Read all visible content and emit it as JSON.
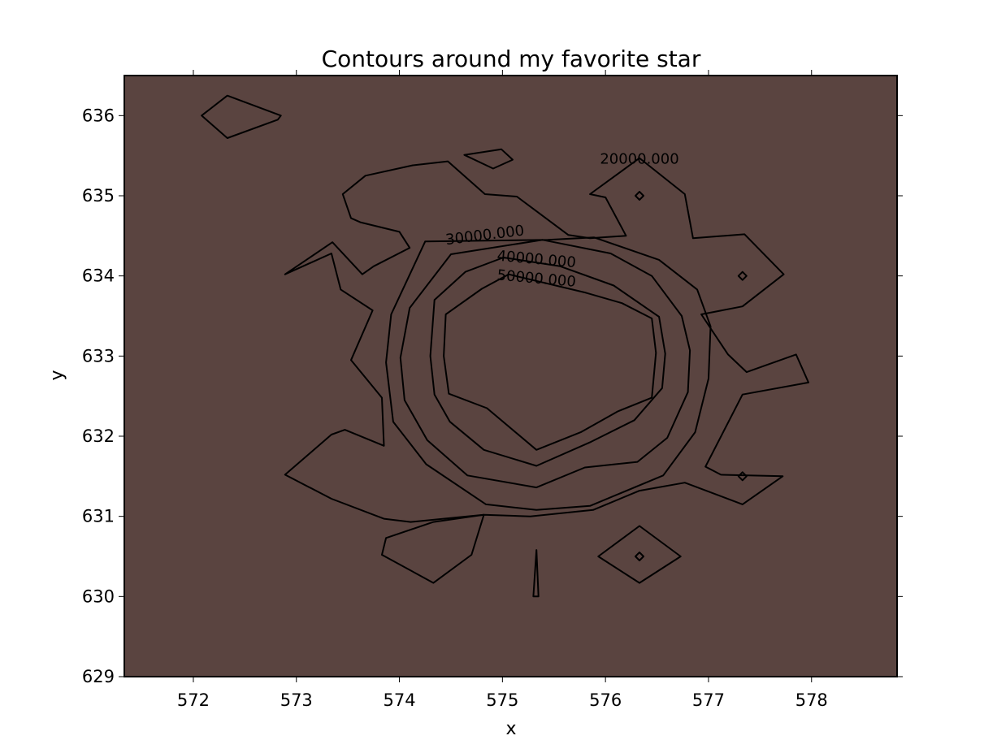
{
  "chart_data": {
    "type": "contour",
    "title": "Contours around my favorite star",
    "xlabel": "x",
    "ylabel": "y",
    "xlim": [
      571.33,
      578.83
    ],
    "ylim": [
      629,
      636.5
    ],
    "xticks": [
      572,
      573,
      574,
      575,
      576,
      577,
      578
    ],
    "yticks": [
      629,
      630,
      631,
      632,
      633,
      634,
      635,
      636
    ],
    "grid": false,
    "levels": [
      {
        "label": "20000.000",
        "value": 20000,
        "color": "#8b4a40"
      },
      {
        "label": "30000.000",
        "value": 30000,
        "color": "#b75540"
      },
      {
        "label": "40000.000",
        "value": 40000,
        "color": "#e08f3c"
      },
      {
        "label": "50000.000",
        "value": 50000,
        "color": "#f2d8b1"
      }
    ],
    "background_color": "#5a4440",
    "regions": [
      {
        "level": 20000,
        "points": [
          [
            575.44,
            634.45
          ],
          [
            574.25,
            634.43
          ],
          [
            573.92,
            633.52
          ],
          [
            573.87,
            632.92
          ],
          [
            573.94,
            632.18
          ],
          [
            574.26,
            631.65
          ],
          [
            574.84,
            631.15
          ],
          [
            575.33,
            631.08
          ],
          [
            575.85,
            631.13
          ],
          [
            576.56,
            631.51
          ],
          [
            576.87,
            632.05
          ],
          [
            577.0,
            632.72
          ],
          [
            577.02,
            633.37
          ],
          [
            576.89,
            633.83
          ],
          [
            576.52,
            634.2
          ],
          [
            575.89,
            634.48
          ]
        ]
      },
      {
        "level": 20000,
        "points": [
          [
            572.08,
            636.0
          ],
          [
            572.33,
            636.25
          ],
          [
            572.85,
            636.0
          ],
          [
            572.82,
            635.95
          ],
          [
            572.33,
            635.72
          ]
        ]
      },
      {
        "level": 20000,
        "points": [
          [
            574.63,
            635.51
          ],
          [
            574.99,
            635.58
          ],
          [
            575.1,
            635.45
          ],
          [
            574.91,
            635.34
          ]
        ]
      },
      {
        "level": 20000,
        "points": [
          [
            573.45,
            635.02
          ],
          [
            573.67,
            635.25
          ],
          [
            574.13,
            635.38
          ],
          [
            574.47,
            635.43
          ],
          [
            574.83,
            635.02
          ],
          [
            575.14,
            634.99
          ],
          [
            575.64,
            634.51
          ],
          [
            575.85,
            634.47
          ],
          [
            576.2,
            634.5
          ],
          [
            576.0,
            634.98
          ],
          [
            575.85,
            635.02
          ],
          [
            576.33,
            635.47
          ],
          [
            576.77,
            635.02
          ],
          [
            576.85,
            634.47
          ],
          [
            577.35,
            634.52
          ],
          [
            577.73,
            634.02
          ],
          [
            577.33,
            633.62
          ],
          [
            576.93,
            633.52
          ],
          [
            577.19,
            633.02
          ],
          [
            577.37,
            632.8
          ],
          [
            577.85,
            633.02
          ],
          [
            577.97,
            632.67
          ],
          [
            577.33,
            632.52
          ],
          [
            576.97,
            631.62
          ],
          [
            577.12,
            631.52
          ],
          [
            577.72,
            631.5
          ],
          [
            577.33,
            631.15
          ],
          [
            576.77,
            631.42
          ],
          [
            576.33,
            631.32
          ],
          [
            575.88,
            631.08
          ],
          [
            575.27,
            631.0
          ],
          [
            574.82,
            631.02
          ],
          [
            574.11,
            630.93
          ],
          [
            573.85,
            630.97
          ],
          [
            573.34,
            631.22
          ],
          [
            572.89,
            631.52
          ],
          [
            573.34,
            632.02
          ],
          [
            573.47,
            632.08
          ],
          [
            573.85,
            631.88
          ],
          [
            573.83,
            632.48
          ],
          [
            573.53,
            632.95
          ],
          [
            573.74,
            633.57
          ],
          [
            573.43,
            633.83
          ],
          [
            573.34,
            634.28
          ],
          [
            572.89,
            634.02
          ],
          [
            573.35,
            634.42
          ],
          [
            573.64,
            634.02
          ],
          [
            573.75,
            634.12
          ],
          [
            574.1,
            634.35
          ],
          [
            574.0,
            634.55
          ],
          [
            573.62,
            634.67
          ],
          [
            573.53,
            634.72
          ]
        ]
      },
      {
        "level": 20000,
        "points": [
          [
            573.83,
            630.52
          ],
          [
            573.87,
            630.73
          ],
          [
            574.33,
            630.93
          ],
          [
            574.82,
            631.02
          ],
          [
            574.7,
            630.52
          ],
          [
            574.33,
            630.17
          ]
        ]
      },
      {
        "level": 20000,
        "points": [
          [
            575.93,
            630.5
          ],
          [
            576.33,
            630.88
          ],
          [
            576.73,
            630.5
          ],
          [
            576.33,
            630.17
          ]
        ]
      },
      {
        "level": 30000,
        "points": [
          [
            575.39,
            634.45
          ],
          [
            574.5,
            634.27
          ],
          [
            574.1,
            633.6
          ],
          [
            574.01,
            632.98
          ],
          [
            574.05,
            632.45
          ],
          [
            574.27,
            631.95
          ],
          [
            574.66,
            631.51
          ],
          [
            575.33,
            631.36
          ],
          [
            575.8,
            631.61
          ],
          [
            576.31,
            631.68
          ],
          [
            576.6,
            631.98
          ],
          [
            576.8,
            632.55
          ],
          [
            576.82,
            633.07
          ],
          [
            576.74,
            633.5
          ],
          [
            576.45,
            634.0
          ],
          [
            576.05,
            634.28
          ]
        ]
      },
      {
        "level": 40000,
        "points": [
          [
            575.01,
            634.23
          ],
          [
            574.64,
            634.05
          ],
          [
            574.34,
            633.7
          ],
          [
            574.3,
            633.0
          ],
          [
            574.34,
            632.52
          ],
          [
            574.49,
            632.18
          ],
          [
            574.82,
            631.83
          ],
          [
            575.33,
            631.63
          ],
          [
            575.86,
            631.93
          ],
          [
            576.28,
            632.2
          ],
          [
            576.55,
            632.6
          ],
          [
            576.58,
            633.03
          ],
          [
            576.52,
            633.49
          ],
          [
            576.08,
            633.88
          ],
          [
            575.56,
            634.12
          ]
        ]
      },
      {
        "level": 50000,
        "points": [
          [
            575.06,
            634.02
          ],
          [
            574.8,
            633.84
          ],
          [
            574.45,
            633.52
          ],
          [
            574.43,
            633.0
          ],
          [
            574.48,
            632.53
          ],
          [
            574.85,
            632.35
          ],
          [
            575.33,
            631.83
          ],
          [
            575.76,
            632.05
          ],
          [
            576.12,
            632.31
          ],
          [
            576.45,
            632.48
          ],
          [
            576.49,
            633.04
          ],
          [
            576.45,
            633.47
          ],
          [
            576.16,
            633.66
          ],
          [
            575.81,
            633.79
          ]
        ]
      },
      {
        "level": 20000,
        "points": [
          [
            575.3,
            630.0
          ],
          [
            575.33,
            630.58
          ],
          [
            575.35,
            630.0
          ]
        ]
      }
    ],
    "inline_labels": [
      {
        "text": "20000.000",
        "x": 576.33,
        "y": 635.45,
        "rotation": 0
      },
      {
        "text": "30000.000",
        "x": 574.83,
        "y": 634.5,
        "rotation": -7
      },
      {
        "text": "40000.000",
        "x": 575.33,
        "y": 634.2,
        "rotation": 5
      },
      {
        "text": "50000.000",
        "x": 575.33,
        "y": 633.96,
        "rotation": 5
      }
    ],
    "markers": [
      {
        "x": 576.33,
        "y": 635.0,
        "level": 20000
      },
      {
        "x": 577.33,
        "y": 634.0,
        "level": 20000
      },
      {
        "x": 577.33,
        "y": 631.5,
        "level": 20000
      },
      {
        "x": 576.33,
        "y": 630.5,
        "level": 20000
      }
    ]
  }
}
